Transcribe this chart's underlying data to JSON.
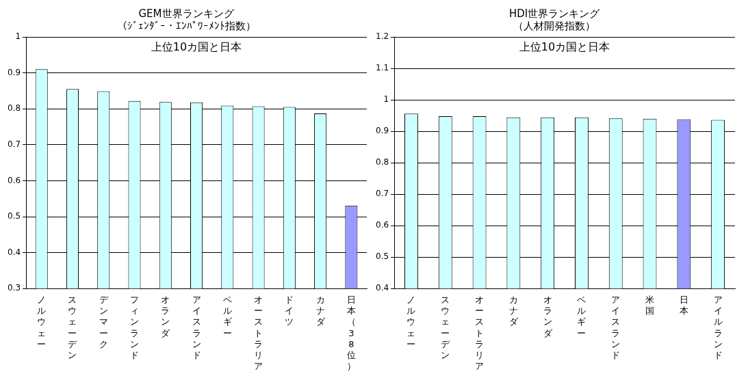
{
  "chart_data": [
    {
      "type": "bar",
      "title": "GEM世界ランキング",
      "subtitle": "（ｼﾞｪﾝﾀﾞｰ・ｴﾝﾊﾟﾜｰﾒﾝﾄ指数）",
      "annotations": [
        "上位10カ国と日本"
      ],
      "categories": [
        "ノルウェー",
        "スウェーデン",
        "デンマーク",
        "フィンランド",
        "オランダ",
        "アイスランド",
        "ベルギー",
        "オーストラリア",
        "ドイツ",
        "カナダ",
        "日本（38位）"
      ],
      "values": [
        0.91,
        0.855,
        0.849,
        0.822,
        0.819,
        0.818,
        0.809,
        0.807,
        0.805,
        0.787,
        0.531
      ],
      "colors": [
        "#ccffff",
        "#ccffff",
        "#ccffff",
        "#ccffff",
        "#ccffff",
        "#ccffff",
        "#ccffff",
        "#ccffff",
        "#ccffff",
        "#ccffff",
        "#9999ff"
      ],
      "ylim": [
        0.3,
        1
      ],
      "yticks": [
        0.3,
        0.4,
        0.5,
        0.6,
        0.7,
        0.8,
        0.9,
        1
      ],
      "grid": "y",
      "legend": false
    },
    {
      "type": "bar",
      "title": "HDI世界ランキング",
      "subtitle": "（人材開発指数）",
      "annotations": [
        "上位10カ国と日本"
      ],
      "categories": [
        "ノルウェー",
        "スウェーデン",
        "オーストラリア",
        "カナダ",
        "オランダ",
        "ベルギー",
        "アイスランド",
        "米国",
        "日本",
        "アイルランド"
      ],
      "values": [
        0.956,
        0.948,
        0.948,
        0.944,
        0.944,
        0.944,
        0.941,
        0.94,
        0.938,
        0.936
      ],
      "colors": [
        "#ccffff",
        "#ccffff",
        "#ccffff",
        "#ccffff",
        "#ccffff",
        "#ccffff",
        "#ccffff",
        "#ccffff",
        "#9999ff",
        "#ccffff"
      ],
      "ylim": [
        0.4,
        1.2
      ],
      "yticks": [
        0.4,
        0.5,
        0.6,
        0.7,
        0.8,
        0.9,
        1,
        1.1,
        1.2
      ],
      "grid": "y",
      "legend": false
    }
  ]
}
